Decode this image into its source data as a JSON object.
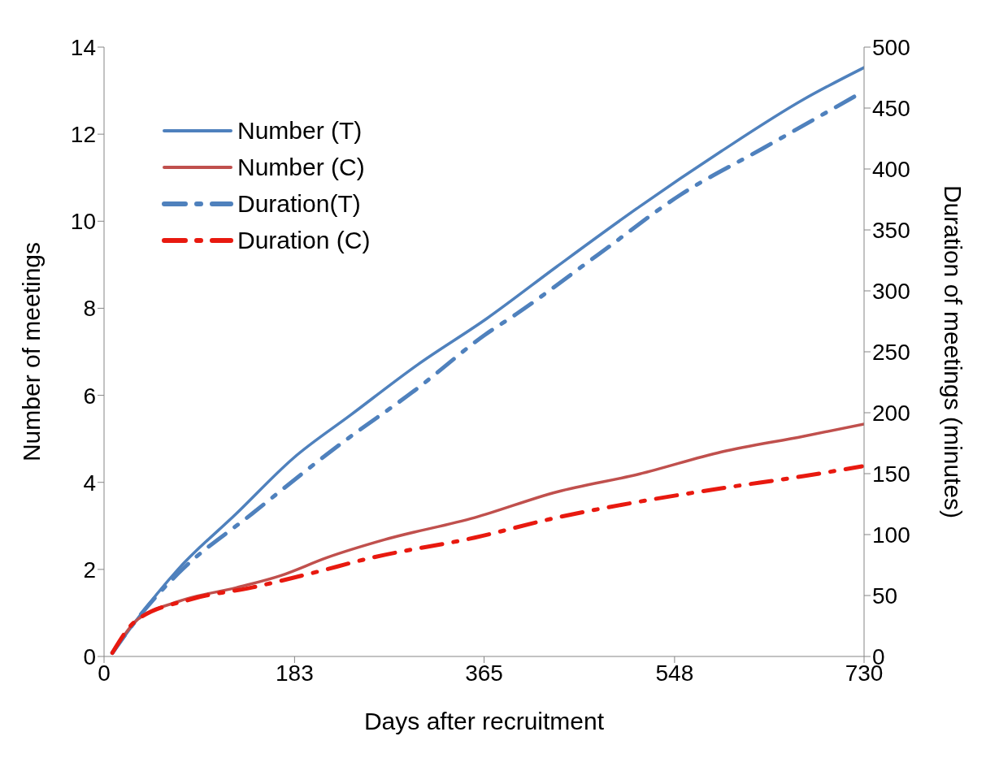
{
  "chart_data": {
    "type": "line",
    "xlabel": "Days after recruitment",
    "ylabel": "Number of meetings",
    "y2label": "Duration of meetings (minutes)",
    "xlim": [
      0,
      730
    ],
    "xticks": [
      0,
      183,
      365,
      548,
      730
    ],
    "ylim": [
      0,
      14
    ],
    "yticks": [
      0,
      2,
      4,
      6,
      8,
      10,
      12,
      14
    ],
    "y2lim": [
      0,
      500
    ],
    "y2ticks": [
      0,
      50,
      100,
      150,
      200,
      250,
      300,
      350,
      400,
      450,
      500
    ],
    "grid": false,
    "legend": "top left",
    "marker": "none",
    "series": [
      {
        "name": "Number (T)",
        "color": "#4f81bd",
        "line_style": "solid",
        "x": [
          8,
          30,
          71,
          127,
          182,
          237,
          301,
          368,
          435,
          514,
          593,
          672,
          730
        ],
        "values": [
          0.07,
          0.8,
          2.0,
          3.28,
          4.56,
          5.55,
          6.7,
          7.77,
          8.96,
          10.33,
          11.61,
          12.8,
          13.53
        ]
      },
      {
        "name": "Number (C)",
        "color": "#c0504d",
        "line_style": "solid",
        "x": [
          8,
          30,
          71,
          127,
          170,
          214,
          269,
          356,
          435,
          514,
          593,
          672,
          730
        ],
        "values": [
          0.07,
          0.8,
          1.26,
          1.58,
          1.86,
          2.27,
          2.68,
          3.19,
          3.78,
          4.19,
          4.7,
          5.06,
          5.34
        ]
      },
      {
        "name": "Duration(T)",
        "color": "#4f81bd",
        "line_style": "dashed",
        "axis": "y2",
        "x": [
          8,
          30,
          71,
          142,
          225,
          301,
          366,
          396,
          475,
          554,
          633,
          726
        ],
        "values": [
          3,
          28.8,
          68,
          117,
          173,
          220,
          264,
          281,
          330,
          379,
          417,
          462
        ]
      },
      {
        "name": "Duration (C)",
        "color": "#e8190f",
        "line_style": "dashed",
        "axis": "y2",
        "x": [
          8,
          30,
          83,
          142,
          198,
          257,
          356,
          435,
          514,
          593,
          672,
          728
        ],
        "values": [
          3,
          28.8,
          46.8,
          56.6,
          68,
          81,
          97.5,
          114,
          127,
          138,
          148,
          156
        ]
      }
    ]
  }
}
